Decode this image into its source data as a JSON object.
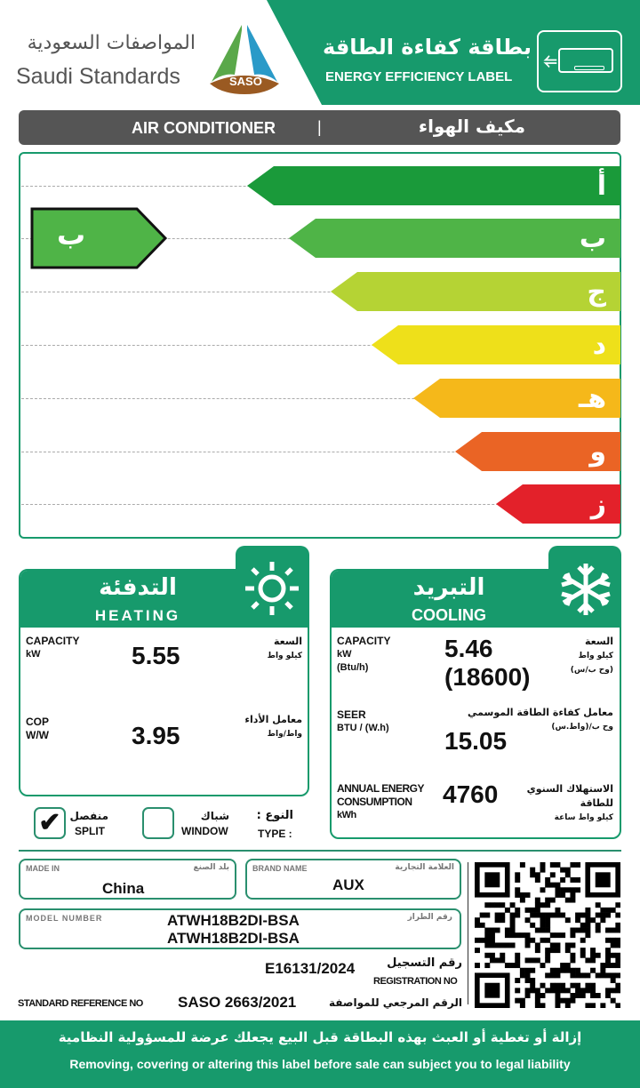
{
  "header": {
    "org_ar": "المواصفات السعودية",
    "org_en": "Saudi Standards",
    "logo_text": "SASO",
    "label_ar": "بطاقة كفاءة الطاقة",
    "label_en": "ENERGY EFFICIENCY LABEL",
    "product_en": "AIR CONDITIONER",
    "separator": "|",
    "product_ar": "مكيف الهواء"
  },
  "rating": {
    "classes": [
      {
        "letter": "أ",
        "color": "#1a9a3a"
      },
      {
        "letter": "ب",
        "color": "#4fb447"
      },
      {
        "letter": "ج",
        "color": "#b5d334"
      },
      {
        "letter": "د",
        "color": "#eee01a"
      },
      {
        "letter": "هـ",
        "color": "#f5b81a"
      },
      {
        "letter": "و",
        "color": "#ea6425"
      },
      {
        "letter": "ز",
        "color": "#e3212a"
      }
    ],
    "current": "ب",
    "current_color": "#4fb447"
  },
  "heating": {
    "title_ar": "التدفئة",
    "title_en": "HEATING",
    "icon": "sun-icon",
    "capacity": {
      "label": "CAPACITY",
      "unit": "kW",
      "label_ar": "السعة",
      "unit_ar": "كيلو واط",
      "value": "5.55"
    },
    "cop": {
      "label": "COP",
      "unit": "W/W",
      "label_ar": "معامل الأداء",
      "unit_ar": "واط/واط",
      "value": "3.95"
    }
  },
  "cooling": {
    "title_ar": "التبريد",
    "title_en": "COOLING",
    "icon": "snowflake-icon",
    "capacity": {
      "label": "CAPACITY",
      "unit": "kW",
      "unit2": "(Btu/h)",
      "label_ar": "السعة",
      "unit_ar": "كيلو واط",
      "unit2_ar": "(وح ب/س)",
      "value": "5.46",
      "value2": "(18600)"
    },
    "seer": {
      "label": "SEER",
      "unit": "BTU / (W.h)",
      "label_ar": "معامل كفاءة الطاقة الموسمي",
      "unit_ar": "وح ب/(واط.س)",
      "value": "15.05"
    },
    "annual": {
      "label1": "ANNUAL ENERGY",
      "label2": "CONSUMPTION",
      "unit": "kWh",
      "label_ar": "الاستهلاك السنوي للطاقة",
      "unit_ar": "كيلو واط ساعة",
      "value": "4760"
    }
  },
  "type": {
    "split_ar": "منفصل",
    "split_en": "SPLIT",
    "split_checked": true,
    "window_ar": "شباك",
    "window_en": "WINDOW",
    "window_checked": false,
    "label_ar": "النوع :",
    "label_en": "TYPE :"
  },
  "info": {
    "made_in_label": "MADE IN",
    "made_in_label_ar": "بلد الصنع",
    "made_in": "China",
    "brand_label": "BRAND NAME",
    "brand_label_ar": "العلامة التجارية",
    "brand": "AUX",
    "model_label": "MODEL NUMBER",
    "model_label_ar": "رقم الطراز",
    "model1": "ATWH18B2DI-BSA",
    "model2": "ATWH18B2DI-BSA",
    "reg_label_ar": "رقم التسجيل",
    "reg_label": "REGISTRATION NO",
    "reg": "E16131/2024",
    "std_label": "STANDARD REFERENCE NO",
    "std": "SASO 2663/2021",
    "std_label_ar": "الرقم المرجعي للمواصفة"
  },
  "footer": {
    "warning_ar": "إزالة أو تغطية أو العبث بهذه البطاقة قبل البيع يجعلك عرضة للمسؤولية النظامية",
    "warning_en": "Removing, covering or altering this label before sale can subject you to legal liability"
  },
  "colors": {
    "brand_green": "#179a6c",
    "header_grey": "#555555"
  }
}
